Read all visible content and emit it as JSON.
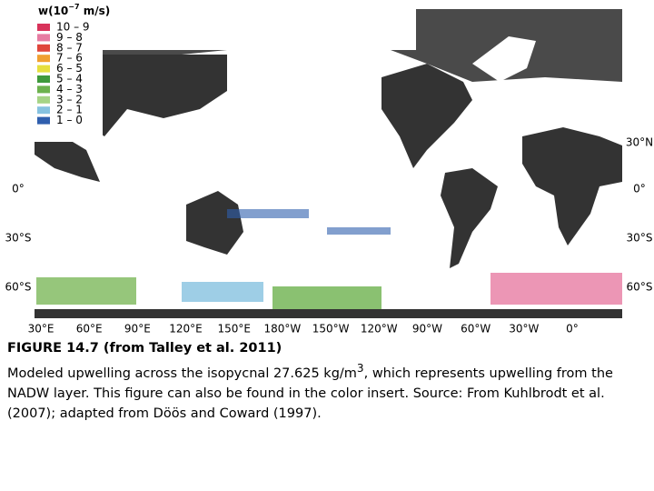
{
  "legend": {
    "title_parts": [
      "w(10",
      "−7",
      " m/s)"
    ],
    "items": [
      {
        "label": "10 – 9",
        "color": "#d8325a"
      },
      {
        "label": "9 – 8",
        "color": "#e77ca2"
      },
      {
        "label": "8 – 7",
        "color": "#e0463c"
      },
      {
        "label": "7 – 6",
        "color": "#f0a030"
      },
      {
        "label": "6 – 5",
        "color": "#e6df3e"
      },
      {
        "label": "5 – 4",
        "color": "#3f9a3c"
      },
      {
        "label": "4 – 3",
        "color": "#6db24e"
      },
      {
        "label": "3 – 2",
        "color": "#a6d486"
      },
      {
        "label": "2 – 1",
        "color": "#86c2e0"
      },
      {
        "label": "1 – 0",
        "color": "#2f5fae"
      }
    ]
  },
  "latitude_labels_left": [
    "0°",
    "30°S",
    "60°S"
  ],
  "latitude_labels_right": [
    "30°N",
    "0°",
    "30°S",
    "60°S"
  ],
  "longitude_labels": [
    "30°E",
    "60°E",
    "90°E",
    "120°E",
    "150°E",
    "180°W",
    "150°W",
    "120°W",
    "90°W",
    "60°W",
    "30°W",
    "0°"
  ],
  "caption": {
    "title": "FIGURE 14.7 (from Talley et al. 2011)",
    "text_before": "Modeled upwelling across the isopycnal 27.625 kg/m",
    "superscript": "3",
    "text_after": ", which represents upwelling from the NADW layer. This figure can also be found in the color insert. Source: From Kuhlbrodt et al. (2007); adapted from Döös and Coward (1997)."
  }
}
